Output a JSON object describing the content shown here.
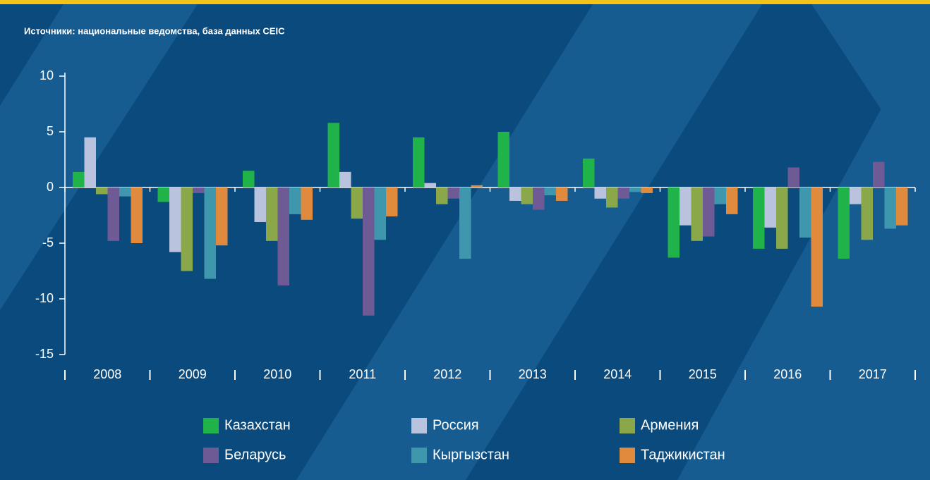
{
  "chart_data": {
    "type": "bar",
    "title": "Источники: национальные ведомства, база данных CEIC",
    "categories": [
      "2008",
      "2009",
      "2010",
      "2011",
      "2012",
      "2013",
      "2014",
      "2015",
      "2016",
      "2017"
    ],
    "series": [
      {
        "name": "Казахстан",
        "color": "#1fb34a",
        "values": [
          1.4,
          -1.3,
          1.5,
          5.8,
          4.5,
          5.0,
          2.6,
          -6.3,
          -5.5,
          -6.4
        ]
      },
      {
        "name": "Россия",
        "color": "#b9c3de",
        "values": [
          4.5,
          -5.8,
          -3.1,
          1.4,
          0.4,
          -1.2,
          -1.0,
          -3.4,
          -3.6,
          -1.5
        ]
      },
      {
        "name": "Армения",
        "color": "#8aa84a",
        "values": [
          -0.6,
          -7.5,
          -4.8,
          -2.8,
          -1.5,
          -1.5,
          -1.8,
          -4.8,
          -5.5,
          -4.7
        ]
      },
      {
        "name": "Беларусь",
        "color": "#6e5a95",
        "values": [
          -4.8,
          -0.5,
          -8.8,
          -11.5,
          -1.0,
          -2.0,
          -1.0,
          -4.4,
          1.8,
          2.3
        ]
      },
      {
        "name": "Кыргызстан",
        "color": "#3f97ad",
        "values": [
          -0.8,
          -8.2,
          -2.4,
          -4.7,
          -6.4,
          -0.7,
          -0.4,
          -1.5,
          -4.5,
          -3.7
        ]
      },
      {
        "name": "Таджикистан",
        "color": "#e08a3e",
        "values": [
          -5.0,
          -5.2,
          -2.9,
          -2.6,
          0.2,
          -1.2,
          -0.5,
          -2.4,
          -10.7,
          -3.4
        ]
      }
    ],
    "ylim": [
      -15,
      10
    ],
    "yticks": [
      -15,
      -10,
      -5,
      0,
      5,
      10
    ]
  }
}
